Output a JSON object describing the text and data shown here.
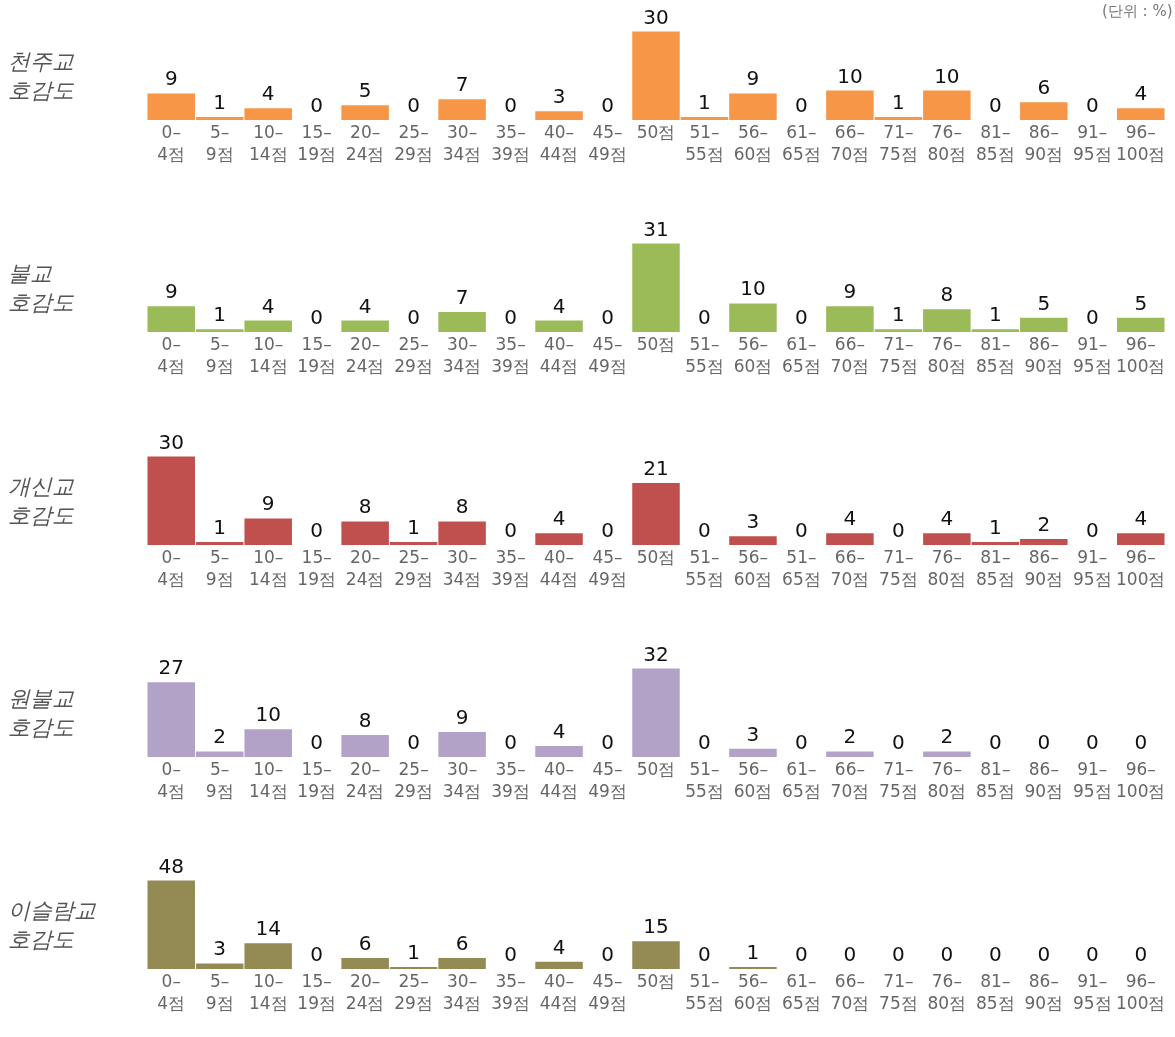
{
  "chart_data": [
    {
      "type": "bar",
      "title": "천주교\n호감도",
      "annotations": [
        "(단위 : %)"
      ],
      "data_labels": true,
      "color": "#f79646",
      "categories": [
        "0–\n4점",
        "5–\n9점",
        "10–\n14점",
        "15–\n19점",
        "20–\n24점",
        "25–\n29점",
        "30–\n34점",
        "35–\n39점",
        "40–\n44점",
        "45–\n49점",
        "50점",
        "51–\n55점",
        "56–\n60점",
        "61–\n65점",
        "66–\n70점",
        "71–\n75점",
        "76–\n80점",
        "81–\n85점",
        "86–\n90점",
        "91–\n95점",
        "96–\n100점"
      ],
      "values": [
        9,
        1,
        4,
        0,
        5,
        0,
        7,
        0,
        3,
        0,
        30,
        1,
        9,
        0,
        10,
        1,
        10,
        0,
        6,
        0,
        4
      ]
    },
    {
      "type": "bar",
      "title": "불교\n호감도",
      "data_labels": true,
      "color": "#9bbb59",
      "categories": [
        "0–\n4점",
        "5–\n9점",
        "10–\n14점",
        "15–\n19점",
        "20–\n24점",
        "25–\n29점",
        "30–\n34점",
        "35–\n39점",
        "40–\n44점",
        "45–\n49점",
        "50점",
        "51–\n55점",
        "56–\n60점",
        "61–\n65점",
        "66–\n70점",
        "71–\n75점",
        "76–\n80점",
        "81–\n85점",
        "86–\n90점",
        "91–\n95점",
        "96–\n100점"
      ],
      "values": [
        9,
        1,
        4,
        0,
        4,
        0,
        7,
        0,
        4,
        0,
        31,
        0,
        10,
        0,
        9,
        1,
        8,
        1,
        5,
        0,
        5
      ]
    },
    {
      "type": "bar",
      "title": "개신교\n호감도",
      "data_labels": true,
      "color": "#c0504d",
      "categories": [
        "0–\n4점",
        "5–\n9점",
        "10–\n14점",
        "15–\n19점",
        "20–\n24점",
        "25–\n29점",
        "30–\n34점",
        "35–\n39점",
        "40–\n44점",
        "45–\n49점",
        "50점",
        "51–\n55점",
        "56–\n60점",
        "51–\n65점",
        "66–\n70점",
        "71–\n75점",
        "76–\n80점",
        "81–\n85점",
        "86–\n90점",
        "91–\n95점",
        "96–\n100점"
      ],
      "values": [
        30,
        1,
        9,
        0,
        8,
        1,
        8,
        0,
        4,
        0,
        21,
        0,
        3,
        0,
        4,
        0,
        4,
        1,
        2,
        0,
        4
      ]
    },
    {
      "type": "bar",
      "title": "원불교\n호감도",
      "data_labels": true,
      "color": "#b2a2c7",
      "categories": [
        "0–\n4점",
        "5–\n9점",
        "10–\n14점",
        "15–\n19점",
        "20–\n24점",
        "25–\n29점",
        "30–\n34점",
        "35–\n39점",
        "40–\n44점",
        "45–\n49점",
        "50점",
        "51–\n55점",
        "56–\n60점",
        "61–\n65점",
        "66–\n70점",
        "71–\n75점",
        "76–\n80점",
        "81–\n85점",
        "86–\n90점",
        "91–\n95점",
        "96–\n100점"
      ],
      "values": [
        27,
        2,
        10,
        0,
        8,
        0,
        9,
        0,
        4,
        0,
        32,
        0,
        3,
        0,
        2,
        0,
        2,
        0,
        0,
        0,
        0
      ]
    },
    {
      "type": "bar",
      "title": "이슬람교\n호감도",
      "data_labels": true,
      "color": "#948a54",
      "categories": [
        "0–\n4점",
        "5–\n9점",
        "10–\n14점",
        "15–\n19점",
        "20–\n24점",
        "25–\n29점",
        "30–\n34점",
        "35–\n39점",
        "40–\n44점",
        "45–\n49점",
        "50점",
        "51–\n55점",
        "56–\n60점",
        "61–\n65점",
        "66–\n70점",
        "71–\n75점",
        "76–\n80점",
        "81–\n85점",
        "86–\n90점",
        "91–\n95점",
        "96–\n100점"
      ],
      "values": [
        48,
        3,
        14,
        0,
        6,
        1,
        6,
        0,
        4,
        0,
        15,
        0,
        1,
        0,
        0,
        0,
        0,
        0,
        0,
        0,
        0
      ]
    }
  ]
}
